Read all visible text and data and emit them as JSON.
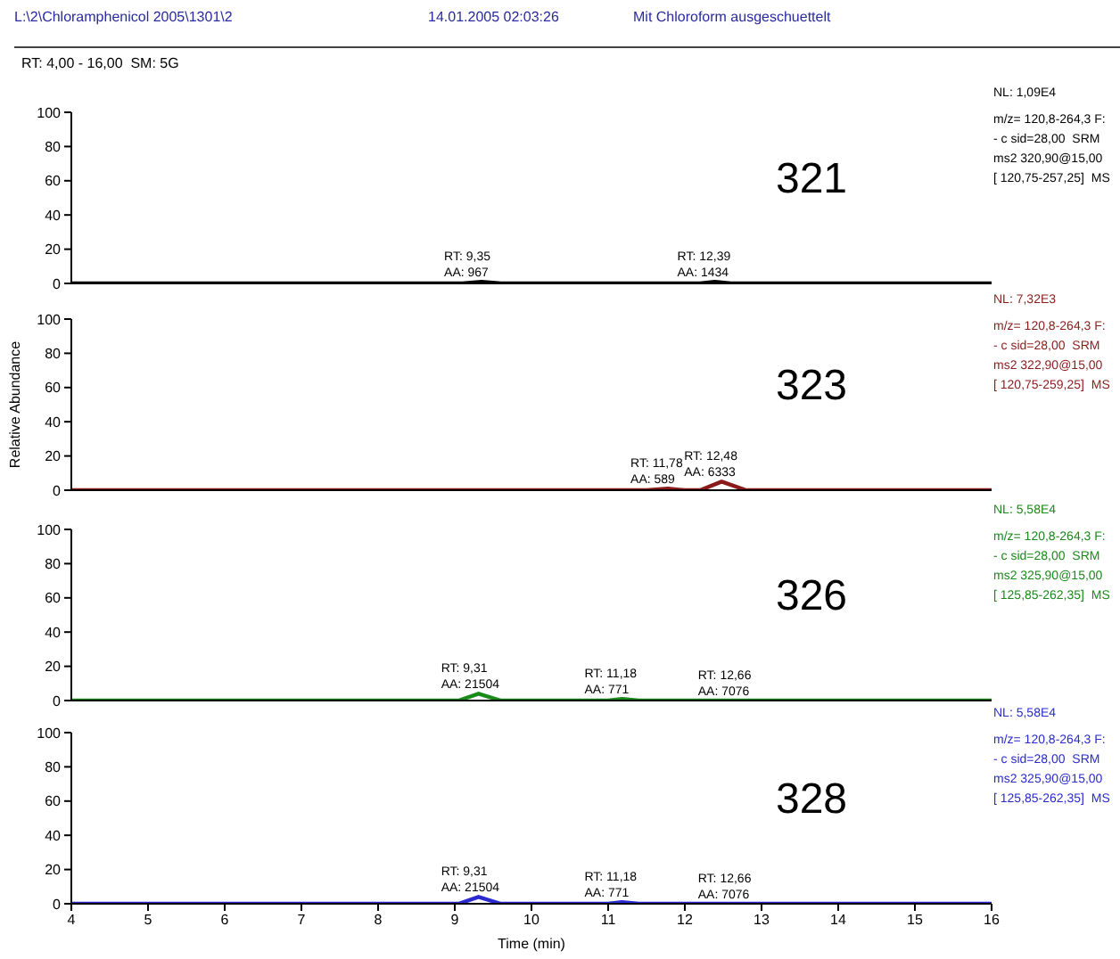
{
  "chart_data": [
    {
      "type": "other",
      "annotations": [
        "L:\\2\\Chloramphenicol 2005\\1301\\2",
        "14.01.2005 02:03:26",
        "Mit Chloroform ausgeschuettelt",
        "RT: 4,00 - 16,00  SM: 5G"
      ]
    },
    {
      "type": "line",
      "x": [
        4,
        9.1,
        9.35,
        9.6,
        12.2,
        12.39,
        12.6,
        16
      ],
      "series": [
        {
          "color": "#000000",
          "values": [
            0,
            0,
            1,
            0,
            0,
            1,
            0,
            0
          ]
        }
      ],
      "xlim": [
        4,
        16
      ],
      "xticks": [
        4,
        5,
        6,
        7,
        8,
        9,
        10,
        11,
        12,
        13,
        14,
        15,
        16
      ],
      "ylim": [
        0,
        100
      ],
      "yticks": [
        0,
        20,
        40,
        60,
        80,
        100
      ],
      "tick_labels": "y",
      "marker": "none",
      "annotations": [
        "321",
        "NL: 1,09E4",
        "m/z= 120,8-264,3 F:",
        "- c sid=28,00  SRM",
        "ms2 320,90@15,00",
        "[ 120,75-257,25]  MS",
        {
          "text": "RT: 9,35\nAA: 967",
          "x": 9.35,
          "y": 1
        },
        {
          "text": "RT: 12,39\nAA: 1434",
          "x": 12.39,
          "y": 1
        }
      ]
    },
    {
      "type": "line",
      "ylabel": "Relative Abundance",
      "x": [
        4,
        11.5,
        11.78,
        12.0,
        12.2,
        12.48,
        12.8,
        16
      ],
      "series": [
        {
          "color": "#8b1a1a",
          "values": [
            0,
            0,
            1,
            0,
            0,
            5,
            0,
            0
          ]
        }
      ],
      "xlim": [
        4,
        16
      ],
      "xticks": [
        4,
        5,
        6,
        7,
        8,
        9,
        10,
        11,
        12,
        13,
        14,
        15,
        16
      ],
      "ylim": [
        0,
        100
      ],
      "yticks": [
        0,
        20,
        40,
        60,
        80,
        100
      ],
      "tick_labels": "y",
      "marker": "none",
      "annotations": [
        "323",
        "NL: 7,32E3",
        "m/z= 120,8-264,3 F:",
        "- c sid=28,00  SRM",
        "ms2 322,90@15,00",
        "[ 120,75-259,25]  MS",
        {
          "text": "RT: 11,78\nAA: 589",
          "x": 11.78,
          "y": 1
        },
        {
          "text": "RT: 12,48\nAA: 6333",
          "x": 12.48,
          "y": 5
        }
      ]
    },
    {
      "type": "line",
      "x": [
        4,
        9.05,
        9.31,
        9.6,
        11.0,
        11.18,
        11.4,
        12.3,
        12.66,
        14.1,
        16
      ],
      "series": [
        {
          "color": "#1a8a1a",
          "values": [
            0,
            0,
            4,
            0,
            0,
            1,
            0,
            0,
            0,
            0,
            0
          ]
        }
      ],
      "xlim": [
        4,
        16
      ],
      "xticks": [
        4,
        5,
        6,
        7,
        8,
        9,
        10,
        11,
        12,
        13,
        14,
        15,
        16
      ],
      "ylim": [
        0,
        100
      ],
      "yticks": [
        0,
        20,
        40,
        60,
        80,
        100
      ],
      "tick_labels": "y",
      "marker": "none",
      "annotations": [
        "326",
        "NL: 5,58E4",
        "m/z= 120,8-264,3 F:",
        "- c sid=28,00  SRM",
        "ms2 325,90@15,00",
        "[ 125,85-262,35]  MS",
        {
          "text": "RT: 9,31\nAA: 21504",
          "x": 9.31,
          "y": 4
        },
        {
          "text": "RT: 11,18\nAA: 771",
          "x": 11.18,
          "y": 1
        },
        {
          "text": "RT: 12,66\nAA: 7076",
          "x": 12.66,
          "y": 0
        }
      ]
    },
    {
      "type": "line",
      "xlabel": "Time (min)",
      "x": [
        4,
        9.05,
        9.31,
        9.6,
        11.0,
        11.18,
        11.4,
        12.3,
        12.66,
        14.1,
        16
      ],
      "series": [
        {
          "color": "#2a2ad0",
          "values": [
            0,
            0,
            4,
            0,
            0,
            1,
            0,
            0,
            0,
            0,
            0
          ]
        }
      ],
      "xlim": [
        4,
        16
      ],
      "xticks": [
        4,
        5,
        6,
        7,
        8,
        9,
        10,
        11,
        12,
        13,
        14,
        15,
        16
      ],
      "ylim": [
        0,
        100
      ],
      "yticks": [
        0,
        20,
        40,
        60,
        80,
        100
      ],
      "marker": "none",
      "annotations": [
        "328",
        "NL: 5,58E4",
        "m/z= 120,8-264,3 F:",
        "- c sid=28,00  SRM",
        "ms2 325,90@15,00",
        "[ 125,85-262,35]  MS",
        {
          "text": "RT: 9,31\nAA: 21504",
          "x": 9.31,
          "y": 4
        },
        {
          "text": "RT: 11,18\nAA: 771",
          "x": 11.18,
          "y": 1
        },
        {
          "text": "RT: 12,66\nAA: 7076",
          "x": 12.66,
          "y": 0
        }
      ]
    }
  ]
}
